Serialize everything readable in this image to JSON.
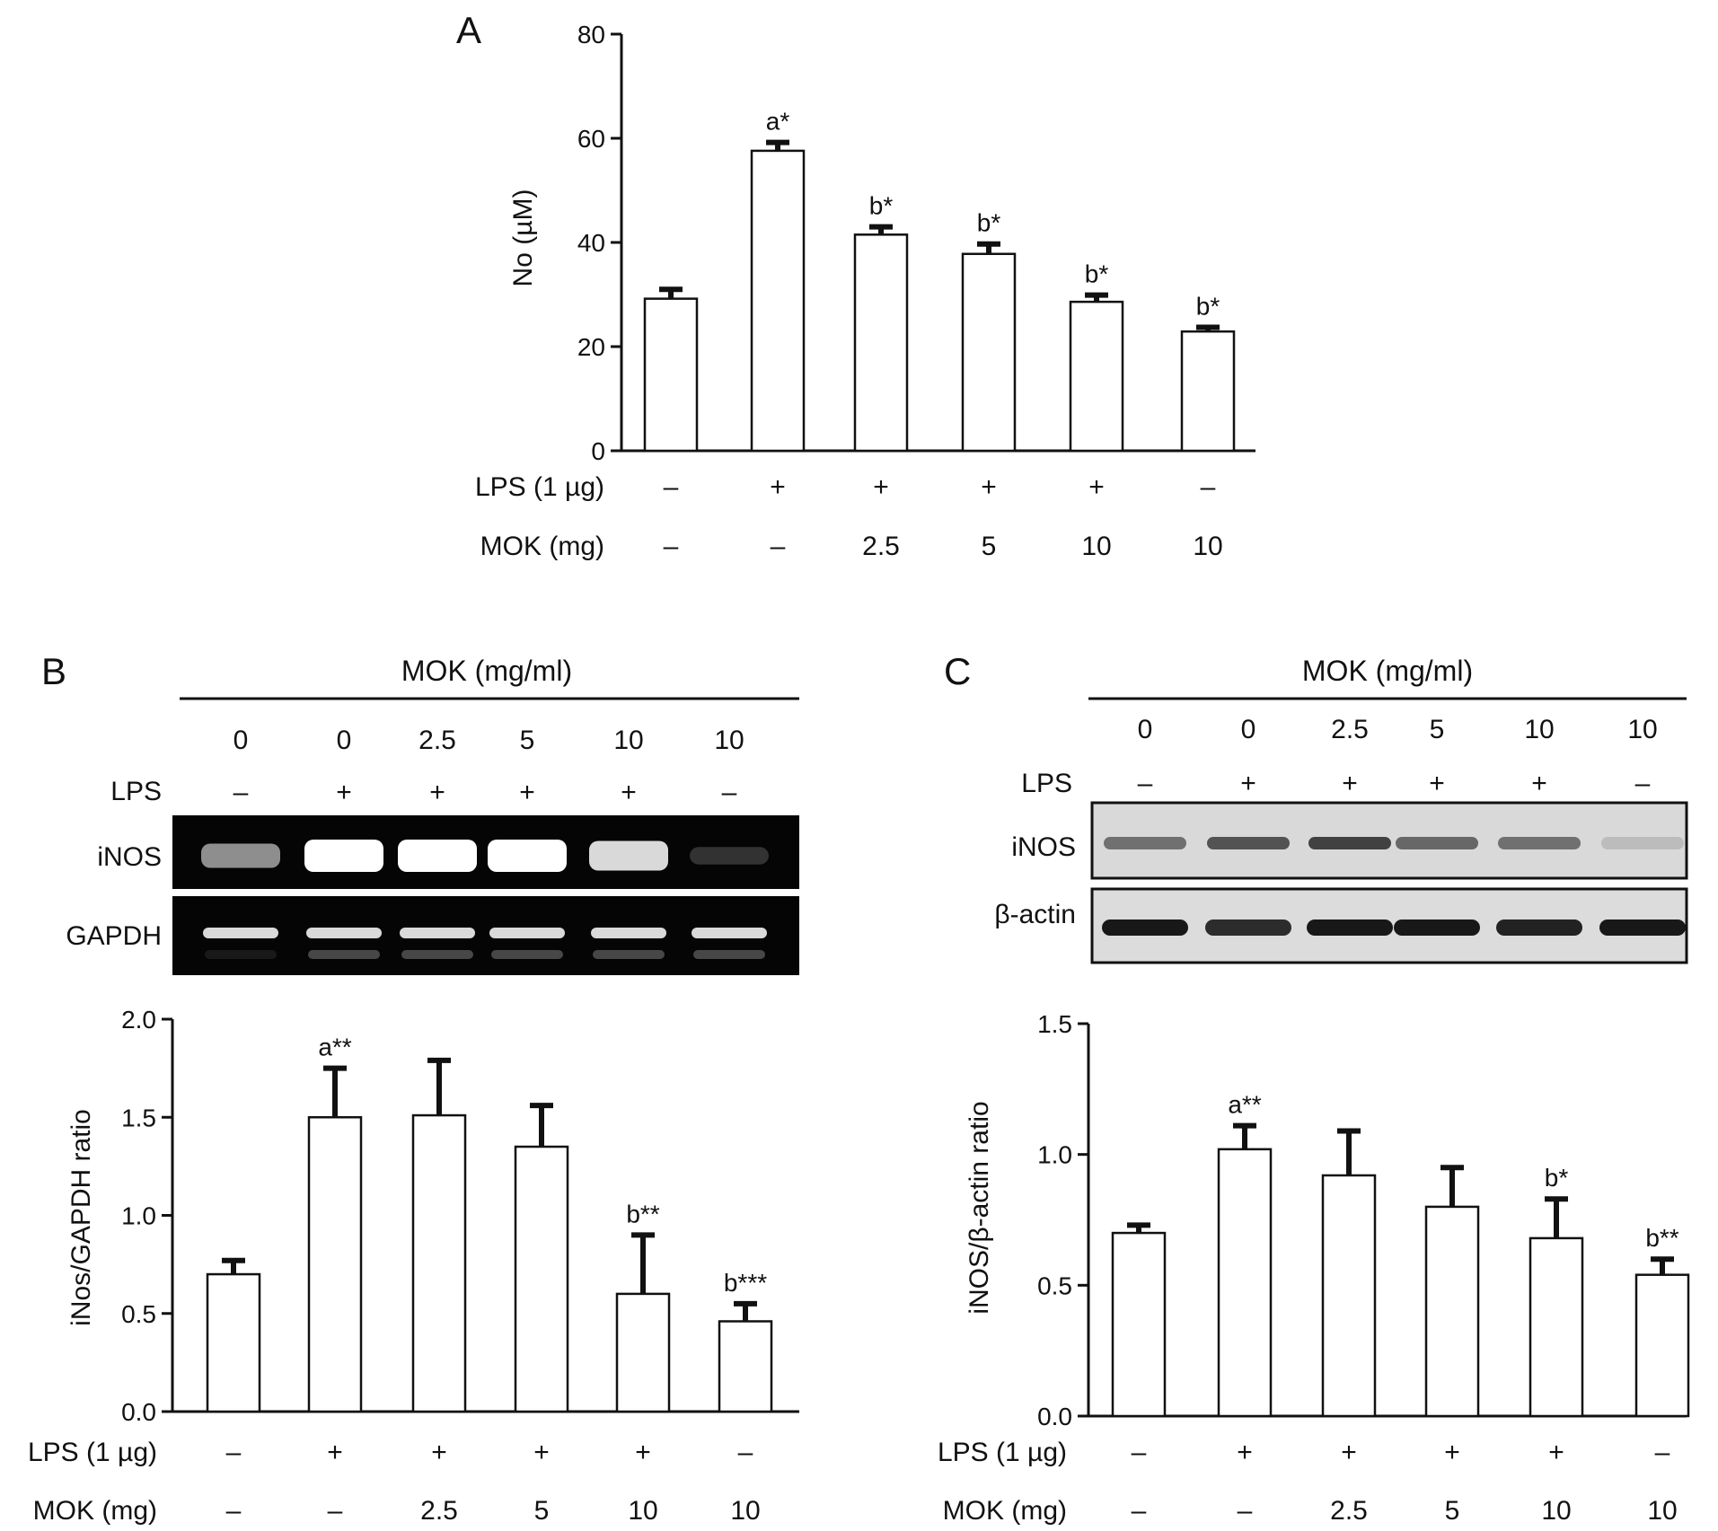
{
  "figure": {
    "panel_labels": [
      "A",
      "B",
      "C"
    ]
  },
  "panel_a": {
    "panel_label": "A",
    "row_labels": [
      "LPS (1 µg)",
      "MOK (mg)"
    ]
  },
  "panel_b": {
    "panel_label": "B",
    "blot_header": "MOK (mg/ml)",
    "blot_doses": [
      "0",
      "0",
      "2.5",
      "5",
      "10",
      "10"
    ],
    "blot_lps_label": "LPS",
    "blot_lps": [
      "–",
      "+",
      "+",
      "+",
      "+",
      "–"
    ],
    "band_labels": [
      "iNOS",
      "GAPDH"
    ],
    "gel_intensity": {
      "iNOS": [
        0.55,
        1.0,
        1.0,
        1.0,
        0.85,
        0.18
      ],
      "GAPDH": [
        0.85,
        0.85,
        0.85,
        0.85,
        0.85,
        0.85
      ]
    },
    "row_labels": [
      "LPS (1 µg)",
      "MOK (mg)"
    ]
  },
  "panel_c": {
    "panel_label": "C",
    "blot_header": "MOK (mg/ml)",
    "blot_doses": [
      "0",
      "0",
      "2.5",
      "5",
      "10",
      "10"
    ],
    "blot_lps_label": "LPS",
    "blot_lps": [
      "–",
      "+",
      "+",
      "+",
      "+",
      "–"
    ],
    "band_labels": [
      "iNOS",
      "β-actin"
    ],
    "blot_intensity": {
      "iNOS": [
        0.55,
        0.7,
        0.8,
        0.6,
        0.55,
        0.15
      ],
      "β-actin": [
        0.95,
        0.85,
        0.95,
        0.95,
        0.9,
        0.95
      ]
    },
    "row_labels": [
      "LPS (1 µg)",
      "MOK (mg)"
    ]
  },
  "chart_data": [
    {
      "type": "bar",
      "panel": "A",
      "categories": [
        "1",
        "2",
        "3",
        "4",
        "5",
        "6"
      ],
      "values": [
        29.2,
        57.6,
        41.5,
        37.8,
        28.6,
        22.9
      ],
      "errors": [
        1.8,
        1.6,
        1.5,
        1.9,
        1.3,
        0.8
      ],
      "annotations": [
        "",
        "a*",
        "b*",
        "b*",
        "b*",
        "b*"
      ],
      "lps": [
        "–",
        "+",
        "+",
        "+",
        "+",
        "–"
      ],
      "mok": [
        "–",
        "–",
        "2.5",
        "5",
        "10",
        "10"
      ],
      "ylabel": "No (µM)",
      "ylim": [
        0,
        80
      ],
      "yticks": [
        "0",
        "20",
        "40",
        "60",
        "80"
      ],
      "ytick_values": [
        0,
        20,
        40,
        60,
        80
      ]
    },
    {
      "type": "bar",
      "panel": "B",
      "categories": [
        "1",
        "2",
        "3",
        "4",
        "5",
        "6"
      ],
      "values": [
        0.7,
        1.5,
        1.51,
        1.35,
        0.6,
        0.46
      ],
      "errors": [
        0.07,
        0.25,
        0.28,
        0.21,
        0.3,
        0.09
      ],
      "annotations": [
        "",
        "a**",
        "",
        "",
        "b**",
        "b***"
      ],
      "lps": [
        "–",
        "+",
        "+",
        "+",
        "+",
        "–"
      ],
      "mok": [
        "–",
        "–",
        "2.5",
        "5",
        "10",
        "10"
      ],
      "ylabel": "iNos/GAPDH ratio",
      "ylim": [
        0,
        2.0
      ],
      "yticks": [
        "0.0",
        "0.5",
        "1.0",
        "1.5",
        "2.0"
      ],
      "ytick_values": [
        0,
        0.5,
        1.0,
        1.5,
        2.0
      ]
    },
    {
      "type": "bar",
      "panel": "C",
      "categories": [
        "1",
        "2",
        "3",
        "4",
        "5",
        "6"
      ],
      "values": [
        0.7,
        1.02,
        0.92,
        0.8,
        0.68,
        0.54
      ],
      "errors": [
        0.03,
        0.09,
        0.17,
        0.15,
        0.15,
        0.06
      ],
      "annotations": [
        "",
        "a**",
        "",
        "",
        "b*",
        "b**"
      ],
      "lps": [
        "–",
        "+",
        "+",
        "+",
        "+",
        "–"
      ],
      "mok": [
        "–",
        "–",
        "2.5",
        "5",
        "10",
        "10"
      ],
      "ylabel": "iNOS/β-actin ratio",
      "ylim": [
        0,
        1.5
      ],
      "yticks": [
        "0.0",
        "0.5",
        "1.0",
        "1.5"
      ],
      "ytick_values": [
        0,
        0.5,
        1.0,
        1.5
      ]
    }
  ]
}
